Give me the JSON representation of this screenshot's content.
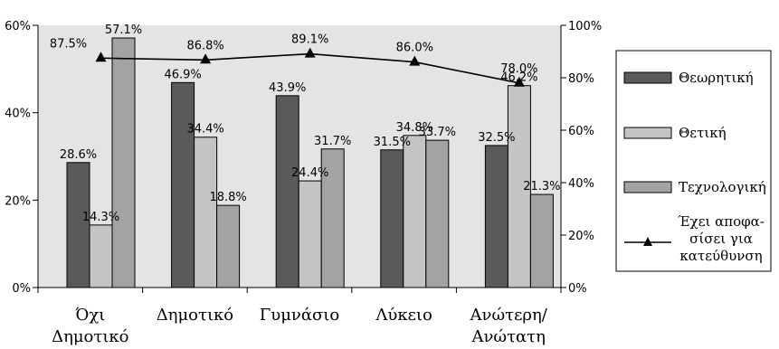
{
  "chart_data": {
    "type": "bar",
    "title": "",
    "xlabel": "",
    "ylabel": "",
    "categories": [
      [
        "Όχι",
        "Δημοτικό"
      ],
      [
        "Δημοτικό"
      ],
      [
        "Γυμνάσιο"
      ],
      [
        "Λύκειο"
      ],
      [
        "Ανώτερη/",
        "Ανώτατη"
      ]
    ],
    "ylim": [
      0,
      60
    ],
    "y_ticks": [
      0,
      20,
      40,
      60
    ],
    "y_tick_labels": [
      "0%",
      "20%",
      "40%",
      "60%"
    ],
    "y2lim": [
      0,
      100
    ],
    "y2_ticks": [
      0,
      20,
      40,
      60,
      80,
      100
    ],
    "y2_tick_labels": [
      "0%",
      "20%",
      "40%",
      "60%",
      "80%",
      "100%"
    ],
    "grid": false,
    "legend_position": "right",
    "series": [
      {
        "name": "Θεωρητική",
        "color": "#5a5a5a",
        "values": [
          28.6,
          46.9,
          43.9,
          31.5,
          32.5
        ],
        "labels": [
          "28.6%",
          "46.9%",
          "43.9%",
          "31.5%",
          "32.5%"
        ]
      },
      {
        "name": "Θετική",
        "color": "#c4c4c4",
        "values": [
          14.3,
          34.4,
          24.4,
          34.8,
          46.2
        ],
        "labels": [
          "14.3%",
          "34.4%",
          "24.4%",
          "34.8%",
          "46.2%"
        ]
      },
      {
        "name": "Τεχνολογική",
        "color": "#a3a3a3",
        "values": [
          57.1,
          18.8,
          31.7,
          33.7,
          21.3
        ],
        "labels": [
          "57.1%",
          "18.8%",
          "31.7%",
          "33.7%",
          "21.3%"
        ]
      }
    ],
    "line_series": {
      "name": [
        "Έχει αποφα-",
        "σίσει για",
        "κατεύθυνση"
      ],
      "axis": "secondary",
      "color": "#000000",
      "marker": "triangle",
      "values": [
        87.5,
        86.8,
        89.1,
        86.0,
        78.0
      ],
      "labels": [
        "87.5%",
        "86.8%",
        "89.1%",
        "86.0%",
        "78.0%"
      ]
    },
    "plot_background": "#e4e4e4"
  }
}
